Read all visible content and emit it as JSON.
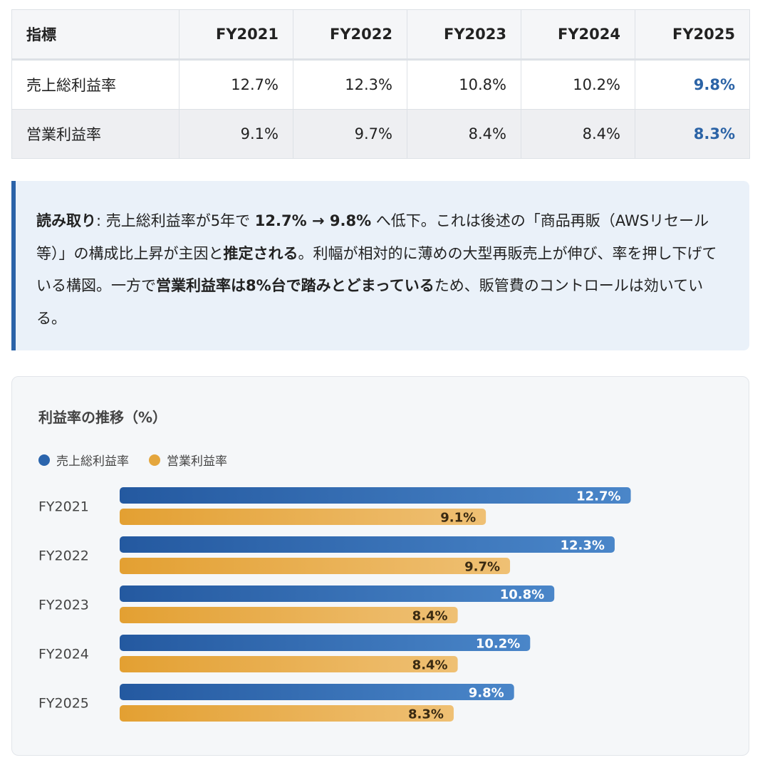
{
  "table": {
    "headers": [
      "指標",
      "FY2021",
      "FY2022",
      "FY2023",
      "FY2024",
      "FY2025"
    ],
    "rows": [
      {
        "label": "売上総利益率",
        "cells": [
          "12.7%",
          "12.3%",
          "10.8%",
          "10.2%",
          "9.8%"
        ]
      },
      {
        "label": "営業利益率",
        "cells": [
          "9.1%",
          "9.7%",
          "8.4%",
          "8.4%",
          "8.3%"
        ]
      }
    ]
  },
  "callout": {
    "lead": "読み取り",
    "t1": ": 売上総利益率が5年で ",
    "b1": "12.7% → 9.8%",
    "t2": " へ低下。これは後述の「商品再販（AWSリセール等）」の構成比上昇が主因と",
    "b2": "推定される",
    "t3": "。利幅が相対的に薄めの大型再販売上が伸び、率を押し下げている構図。一方で",
    "b3": "営業利益率は8%台で踏みとどまっている",
    "t4": "ため、販管費のコントロールは効いている。"
  },
  "chart_data": {
    "type": "bar",
    "orientation": "horizontal",
    "title": "利益率の推移（%）",
    "categories": [
      "FY2021",
      "FY2022",
      "FY2023",
      "FY2024",
      "FY2025"
    ],
    "series": [
      {
        "name": "売上総利益率",
        "color": "#2b65ad",
        "values": [
          12.7,
          12.3,
          10.8,
          10.2,
          9.8
        ]
      },
      {
        "name": "営業利益率",
        "color": "#e4a63d",
        "values": [
          9.1,
          9.7,
          8.4,
          8.4,
          8.3
        ]
      }
    ],
    "value_suffix": "%",
    "legend": "top-left",
    "grid": false
  }
}
